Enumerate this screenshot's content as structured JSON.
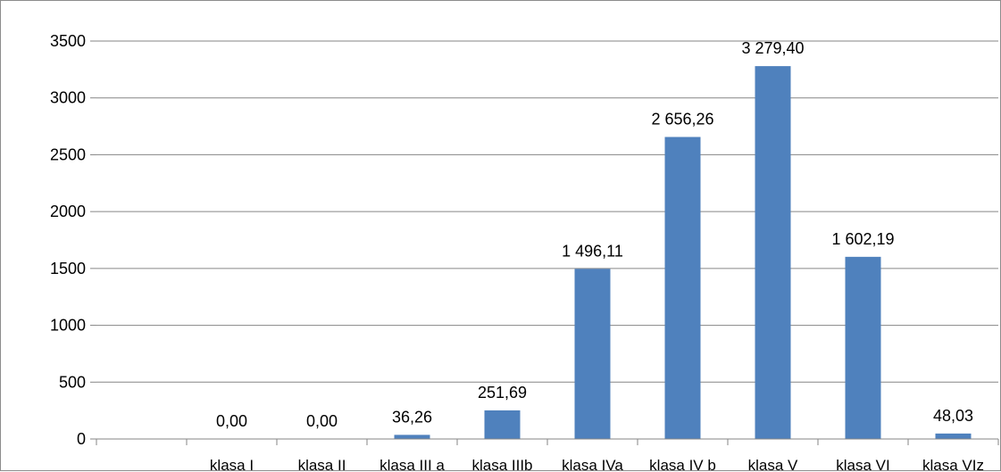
{
  "chart_data": {
    "type": "bar",
    "categories": [
      "",
      "klasa I",
      "klasa II",
      "klasa III a",
      "klasa IIIb",
      "klasa IVa",
      "klasa IV b",
      "klasa V",
      "klasa VI",
      "klasa VIz"
    ],
    "values": [
      null,
      0,
      0,
      36.26,
      251.69,
      1496.11,
      2656.26,
      3279.4,
      1602.19,
      48.03
    ],
    "data_labels": [
      "",
      "0,00",
      "0,00",
      "36,26",
      "251,69",
      "1 496,11",
      "2 656,26",
      "3 279,40",
      "1 602,19",
      "48,03"
    ],
    "ylim": [
      0,
      3500
    ],
    "yticks": [
      0,
      500,
      1000,
      1500,
      2000,
      2500,
      3000,
      3500
    ],
    "title": "",
    "xlabel": "",
    "ylabel": "",
    "grid": "horizontal",
    "legend": "none",
    "colors": {
      "bar": "#4f81bd",
      "grid": "#868686",
      "axis": "#868686"
    }
  }
}
